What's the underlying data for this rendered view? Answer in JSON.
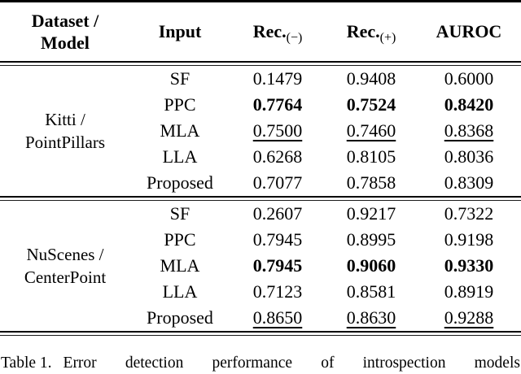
{
  "page": {
    "background": "#ffffff",
    "text_color": "#000000"
  },
  "table": {
    "header": {
      "dataset_model_line1": "Dataset /",
      "dataset_model_line2": "Model",
      "input": "Input",
      "rec_neg_main": "Rec.",
      "rec_neg_sub": "(−)",
      "rec_pos_main": "Rec.",
      "rec_pos_sub": "(+)",
      "auroc": "AUROC"
    },
    "groups": [
      {
        "dataset_line1": "Kitti /",
        "dataset_line2": "PointPillars",
        "rows": [
          {
            "input": "SF",
            "rec_neg": "0.1479",
            "rec_pos": "0.9408",
            "auroc": "0.6000",
            "emphasis": "none"
          },
          {
            "input": "PPC",
            "rec_neg": "0.7764",
            "rec_pos": "0.7524",
            "auroc": "0.8420",
            "emphasis": "bold"
          },
          {
            "input": "MLA",
            "rec_neg": "0.7500",
            "rec_pos": "0.7460",
            "auroc": "0.8368",
            "emphasis": "underline"
          },
          {
            "input": "LLA",
            "rec_neg": "0.6268",
            "rec_pos": "0.8105",
            "auroc": "0.8036",
            "emphasis": "none"
          },
          {
            "input": "Proposed",
            "rec_neg": "0.7077",
            "rec_pos": "0.7858",
            "auroc": "0.8309",
            "emphasis": "none"
          }
        ]
      },
      {
        "dataset_line1": "NuScenes /",
        "dataset_line2": "CenterPoint",
        "rows": [
          {
            "input": "SF",
            "rec_neg": "0.2607",
            "rec_pos": "0.9217",
            "auroc": "0.7322",
            "emphasis": "none"
          },
          {
            "input": "PPC",
            "rec_neg": "0.7945",
            "rec_pos": "0.8995",
            "auroc": "0.9198",
            "emphasis": "none"
          },
          {
            "input": "MLA",
            "rec_neg": "0.7945",
            "rec_pos": "0.9060",
            "auroc": "0.9330",
            "emphasis": "bold"
          },
          {
            "input": "LLA",
            "rec_neg": "0.7123",
            "rec_pos": "0.8581",
            "auroc": "0.8919",
            "emphasis": "none"
          },
          {
            "input": "Proposed",
            "rec_neg": "0.8650",
            "rec_pos": "0.8630",
            "auroc": "0.9288",
            "emphasis": "underline"
          }
        ]
      }
    ]
  },
  "caption": {
    "label": "Table 1.",
    "words": {
      "w1": "Error",
      "w2": "detection",
      "w3": "performance",
      "w4": "of",
      "w5": "introspection",
      "w6": "models"
    }
  }
}
